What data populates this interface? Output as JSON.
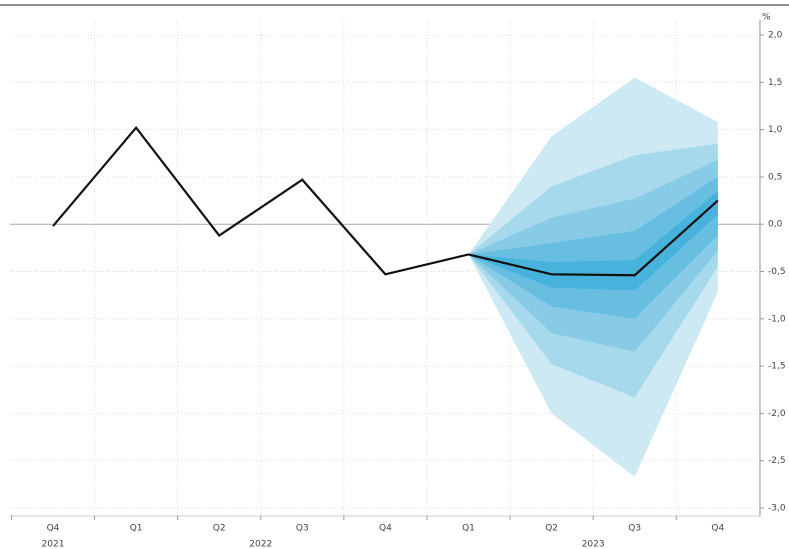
{
  "chart_data": {
    "type": "fan",
    "unit": "%",
    "categories": [
      "Q4",
      "Q1",
      "Q2",
      "Q3",
      "Q4",
      "Q1",
      "Q2",
      "Q3",
      "Q4"
    ],
    "year_groups": [
      {
        "label": "2021",
        "from": 0,
        "to": 0
      },
      {
        "label": "2022",
        "from": 1,
        "to": 4
      },
      {
        "label": "2023",
        "from": 5,
        "to": 8
      }
    ],
    "series": [
      {
        "name": "line",
        "color": "#111111",
        "values": [
          -0.02,
          1.02,
          -0.12,
          0.47,
          -0.53,
          -0.32,
          -0.53,
          -0.54,
          0.25
        ]
      }
    ],
    "bands": [
      {
        "color": "#cde9f4",
        "upper": [
          null,
          null,
          null,
          null,
          null,
          -0.32,
          0.93,
          1.55,
          1.08
        ],
        "lower": [
          null,
          null,
          null,
          null,
          null,
          -0.32,
          -2.0,
          -2.67,
          -0.72
        ]
      },
      {
        "color": "#a7d9ed",
        "upper": [
          null,
          null,
          null,
          null,
          null,
          -0.32,
          0.4,
          0.73,
          0.85
        ],
        "lower": [
          null,
          null,
          null,
          null,
          null,
          -0.32,
          -1.48,
          -1.83,
          -0.45
        ]
      },
      {
        "color": "#87cbe6",
        "upper": [
          null,
          null,
          null,
          null,
          null,
          -0.32,
          0.07,
          0.27,
          0.68
        ],
        "lower": [
          null,
          null,
          null,
          null,
          null,
          -0.32,
          -1.15,
          -1.35,
          -0.28
        ]
      },
      {
        "color": "#67bee1",
        "upper": [
          null,
          null,
          null,
          null,
          null,
          -0.32,
          -0.2,
          -0.07,
          0.5
        ],
        "lower": [
          null,
          null,
          null,
          null,
          null,
          -0.32,
          -0.87,
          -1.0,
          -0.12
        ]
      },
      {
        "color": "#47b2db",
        "upper": [
          null,
          null,
          null,
          null,
          null,
          -0.32,
          -0.4,
          -0.38,
          0.35
        ],
        "lower": [
          null,
          null,
          null,
          null,
          null,
          -0.32,
          -0.67,
          -0.7,
          0.1
        ]
      }
    ],
    "ylim": [
      -3.0,
      2.0
    ],
    "yticks": [
      {
        "value": 2.0,
        "label": "2,0"
      },
      {
        "value": 1.5,
        "label": "1,5"
      },
      {
        "value": 1.0,
        "label": "1,0"
      },
      {
        "value": 0.5,
        "label": "0,5"
      },
      {
        "value": 0.0,
        "label": "0,0"
      },
      {
        "value": -0.5,
        "label": "-0,5"
      },
      {
        "value": -1.0,
        "label": "-1,0"
      },
      {
        "value": -1.5,
        "label": "-1,5"
      },
      {
        "value": -2.0,
        "label": "-2,0"
      },
      {
        "value": -2.5,
        "label": "-2,5"
      },
      {
        "value": -3.0,
        "label": "-3,0"
      }
    ],
    "grid": true
  }
}
